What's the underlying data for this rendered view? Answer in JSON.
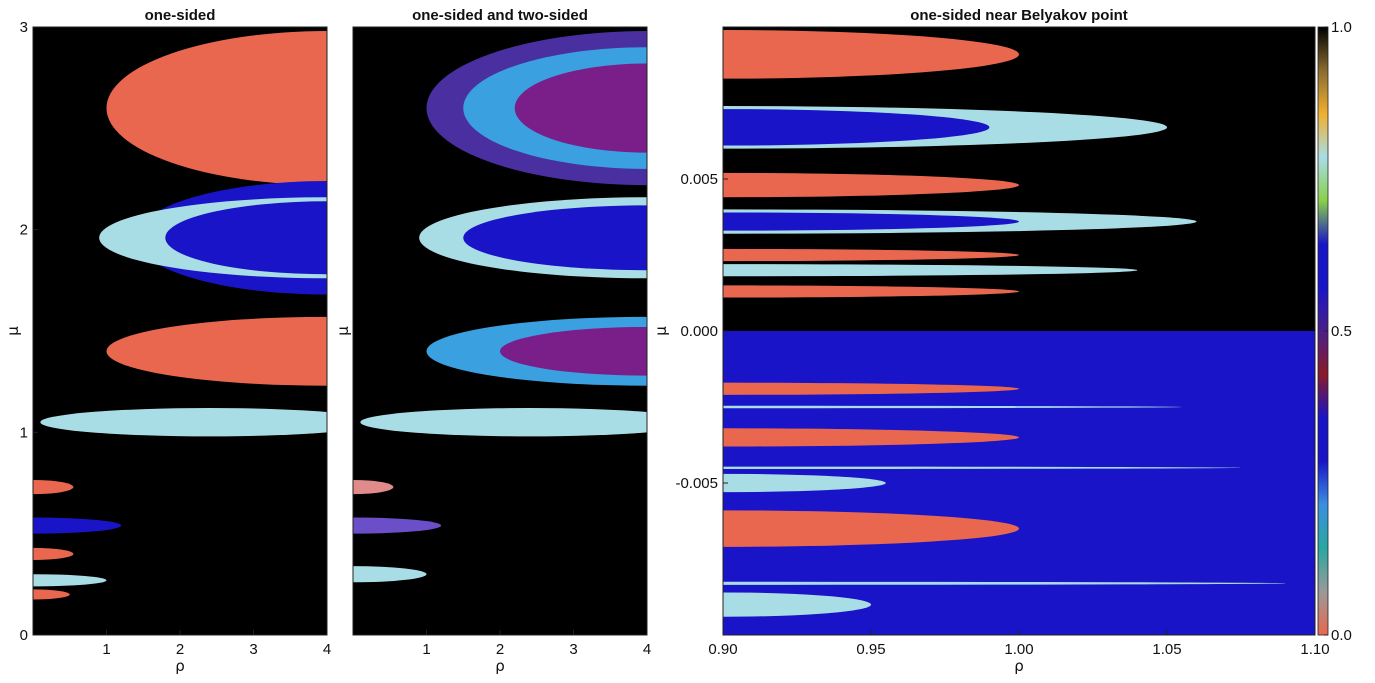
{
  "chart_data": [
    {
      "type": "heatmap",
      "title": "one-sided",
      "xlabel": "ρ",
      "ylabel": "μ",
      "xlim": [
        0.0,
        4.0
      ],
      "ylim": [
        0.0,
        3.0
      ],
      "x_ticks": [
        "1",
        "2",
        "3",
        "4"
      ],
      "y_ticks": [
        "0",
        "1",
        "2",
        "3"
      ],
      "x_tick_values": [
        1,
        2,
        3,
        4
      ],
      "y_tick_values": [
        0,
        1,
        2,
        3
      ],
      "background": "#000000",
      "regions": [
        {
          "color": "#e9674f",
          "cx": 4.0,
          "cy": 2.6,
          "rx": 3.0,
          "ry": 0.38
        },
        {
          "color": "#e9674f",
          "cx": 4.0,
          "cy": 1.4,
          "rx": 3.0,
          "ry": 0.17
        },
        {
          "color": "#1a14c8",
          "cx": 4.0,
          "cy": 1.96,
          "rx": 2.6,
          "ry": 0.28
        },
        {
          "color": "#a9dde6",
          "cx": 4.0,
          "cy": 1.96,
          "rx": 3.1,
          "ry": 0.2
        },
        {
          "color": "#1a14c8",
          "cx": 4.0,
          "cy": 1.96,
          "rx": 2.2,
          "ry": 0.18
        },
        {
          "color": "#a9dde6",
          "cx": 2.4,
          "cy": 1.05,
          "rx": 2.3,
          "ry": 0.07
        },
        {
          "color": "#e9674f",
          "cx": 0.0,
          "cy": 0.73,
          "rx": 0.55,
          "ry": 0.035
        },
        {
          "color": "#1a14c8",
          "cx": 0.0,
          "cy": 0.54,
          "rx": 1.2,
          "ry": 0.04
        },
        {
          "color": "#e9674f",
          "cx": 0.0,
          "cy": 0.4,
          "rx": 0.55,
          "ry": 0.03
        },
        {
          "color": "#a9dde6",
          "cx": 0.0,
          "cy": 0.27,
          "rx": 1.0,
          "ry": 0.03
        },
        {
          "color": "#e9674f",
          "cx": 0.0,
          "cy": 0.2,
          "rx": 0.5,
          "ry": 0.025
        }
      ]
    },
    {
      "type": "heatmap",
      "title": "one-sided and two-sided",
      "xlabel": "ρ",
      "ylabel": "μ",
      "xlim": [
        0.0,
        4.0
      ],
      "ylim": [
        0.0,
        3.0
      ],
      "x_ticks": [
        "1",
        "2",
        "3",
        "4"
      ],
      "x_tick_values": [
        1,
        2,
        3,
        4
      ],
      "background": "#000000",
      "regions": [
        {
          "color": "#4a2fa0",
          "cx": 4.0,
          "cy": 2.6,
          "rx": 3.0,
          "ry": 0.38
        },
        {
          "color": "#3aa0e0",
          "cx": 4.0,
          "cy": 2.6,
          "rx": 2.5,
          "ry": 0.3
        },
        {
          "color": "#7a1f8a",
          "cx": 4.0,
          "cy": 2.6,
          "rx": 1.8,
          "ry": 0.22
        },
        {
          "color": "#a9dde6",
          "cx": 4.0,
          "cy": 1.96,
          "rx": 3.1,
          "ry": 0.2
        },
        {
          "color": "#1a14c8",
          "cx": 4.0,
          "cy": 1.96,
          "rx": 2.5,
          "ry": 0.16
        },
        {
          "color": "#3aa0e0",
          "cx": 4.0,
          "cy": 1.4,
          "rx": 3.0,
          "ry": 0.17
        },
        {
          "color": "#7a1f8a",
          "cx": 4.0,
          "cy": 1.4,
          "rx": 2.0,
          "ry": 0.12
        },
        {
          "color": "#a9dde6",
          "cx": 2.4,
          "cy": 1.05,
          "rx": 2.3,
          "ry": 0.07
        },
        {
          "color": "#e08a8a",
          "cx": 0.0,
          "cy": 0.73,
          "rx": 0.55,
          "ry": 0.035
        },
        {
          "color": "#6a4fc8",
          "cx": 0.0,
          "cy": 0.54,
          "rx": 1.2,
          "ry": 0.04
        },
        {
          "color": "#a9dde6",
          "cx": 0.0,
          "cy": 0.3,
          "rx": 1.0,
          "ry": 0.04
        }
      ]
    },
    {
      "type": "heatmap",
      "title": "one-sided near Belyakov point",
      "xlabel": "ρ",
      "ylabel": "μ",
      "xlim": [
        0.9,
        1.1
      ],
      "ylim": [
        -0.01,
        0.01
      ],
      "x_ticks": [
        "0.90",
        "0.95",
        "1.00",
        "1.05",
        "1.10"
      ],
      "x_tick_values": [
        0.9,
        0.95,
        1.0,
        1.05,
        1.1
      ],
      "y_ticks": [
        "-0.005",
        "0.000",
        "0.005"
      ],
      "y_tick_values": [
        -0.005,
        0.0,
        0.005
      ],
      "background_upper": "#000000",
      "background_lower": "#1a14c8",
      "split_mu": 0.0,
      "regions": [
        {
          "color": "#e9674f",
          "cx": 0.9,
          "cy": 0.0091,
          "rx": 0.1,
          "ry": 0.0008
        },
        {
          "color": "#a9dde6",
          "cx": 0.9,
          "cy": 0.0067,
          "rx": 0.15,
          "ry": 0.0007
        },
        {
          "color": "#1a14c8",
          "cx": 0.9,
          "cy": 0.0067,
          "rx": 0.09,
          "ry": 0.0006
        },
        {
          "color": "#e9674f",
          "cx": 0.9,
          "cy": 0.0048,
          "rx": 0.1,
          "ry": 0.0004
        },
        {
          "color": "#a9dde6",
          "cx": 0.9,
          "cy": 0.0036,
          "rx": 0.16,
          "ry": 0.0004
        },
        {
          "color": "#1a14c8",
          "cx": 0.9,
          "cy": 0.0036,
          "rx": 0.1,
          "ry": 0.0003
        },
        {
          "color": "#e9674f",
          "cx": 0.9,
          "cy": 0.0025,
          "rx": 0.1,
          "ry": 0.0002
        },
        {
          "color": "#a9dde6",
          "cx": 0.9,
          "cy": 0.002,
          "rx": 0.14,
          "ry": 0.0002
        },
        {
          "color": "#e9674f",
          "cx": 0.9,
          "cy": 0.0013,
          "rx": 0.1,
          "ry": 0.0002
        },
        {
          "color": "#e9674f",
          "cx": 0.9,
          "cy": -0.0019,
          "rx": 0.1,
          "ry": 0.0002
        },
        {
          "color": "#e9674f",
          "cx": 0.9,
          "cy": -0.0035,
          "rx": 0.1,
          "ry": 0.0003
        },
        {
          "color": "#e9674f",
          "cx": 0.9,
          "cy": -0.0065,
          "rx": 0.1,
          "ry": 0.0006
        },
        {
          "color": "#a9dde6",
          "cx": 0.9,
          "cy": -0.005,
          "rx": 0.055,
          "ry": 0.0003
        },
        {
          "color": "#a9dde6",
          "cx": 0.9,
          "cy": -0.009,
          "rx": 0.05,
          "ry": 0.0004
        },
        {
          "color": "#a9dde6",
          "cx": 0.9,
          "cy": -0.0083,
          "rx": 0.19,
          "ry": 5e-05
        },
        {
          "color": "#a9dde6",
          "cx": 0.9,
          "cy": -0.0045,
          "rx": 0.175,
          "ry": 4e-05
        },
        {
          "color": "#a9dde6",
          "cx": 0.9,
          "cy": -0.0025,
          "rx": 0.155,
          "ry": 4e-05
        }
      ],
      "colorbar": {
        "ticks": [
          "0.0",
          "0.5",
          "1.0"
        ],
        "tick_values": [
          0.0,
          0.5,
          1.0
        ],
        "stops": [
          "#e9674f",
          "#9a9a9a",
          "#2aa7a0",
          "#3a8fe0",
          "#1a14c8",
          "#1a14c8",
          "#8a1a2a",
          "#4a1f8a",
          "#1a14c8",
          "#1a14c8",
          "#8ad04a",
          "#a9dde6",
          "#f0b030",
          "#8a6a30",
          "#000000"
        ]
      }
    }
  ]
}
